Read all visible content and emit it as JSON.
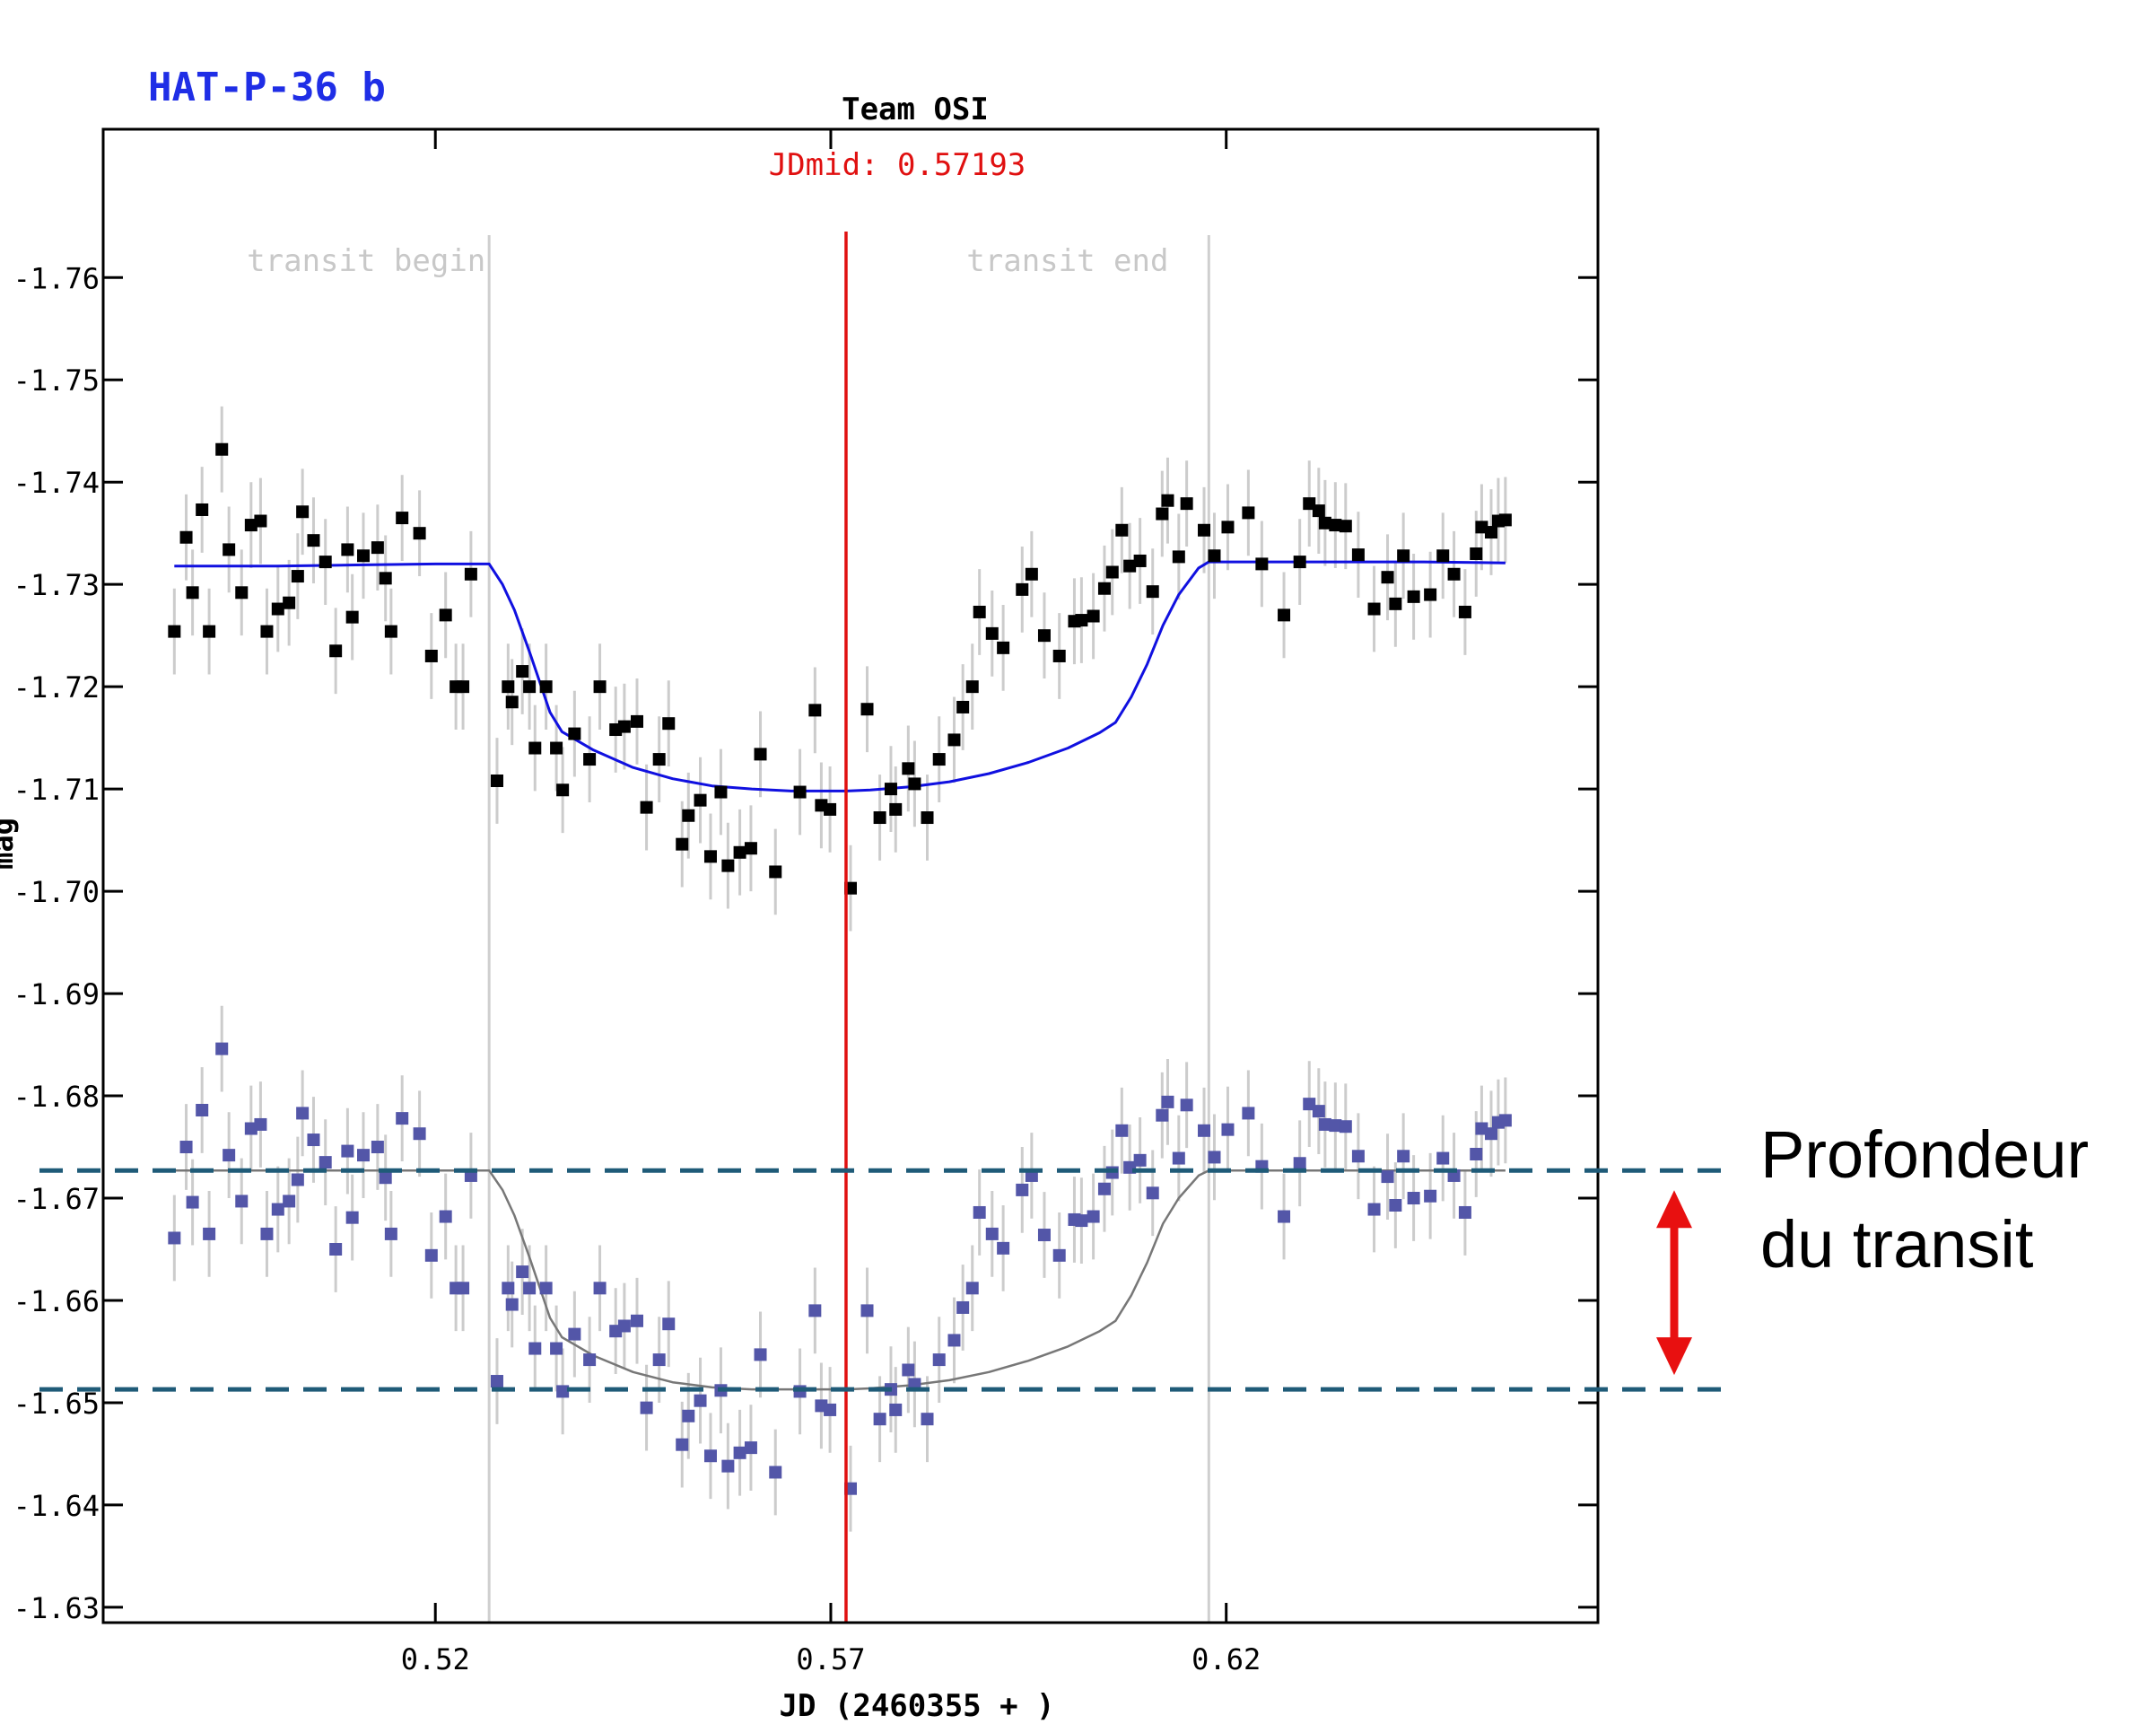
{
  "planet_name": "HAT-P-36 b",
  "annotation": {
    "line1": "Profondeur",
    "line2": "du transit"
  },
  "colors": {
    "planet_title": "#1f2ee6",
    "primary_points": "#000000",
    "primary_fit": "#1010e0",
    "secondary_points": "#5356a8",
    "secondary_fit": "#777777",
    "midline": "#e01010",
    "transit_bounds": "#cfcfcf",
    "error_bars": "#cccccc",
    "dashed_lines": "#1f5b78",
    "arrow": "#e81010"
  },
  "chart_data": {
    "type": "scatter",
    "title": "Team OSI",
    "subtitle": "JDmid: 0.57193",
    "xlabel": "JD (2460355 + )",
    "ylabel": "mag",
    "xlim": [
      0.478,
      0.667
    ],
    "ylim": [
      -1.7745,
      -1.6285
    ],
    "x_ticks": [
      0.52,
      0.57,
      0.62
    ],
    "x_tick_labels": [
      "0.52",
      "0.57",
      "0.62"
    ],
    "y_ticks": [
      -1.76,
      -1.75,
      -1.74,
      -1.73,
      -1.72,
      -1.71,
      -1.7,
      -1.69,
      -1.68,
      -1.67,
      -1.66,
      -1.65,
      -1.64,
      -1.63
    ],
    "y_tick_labels": [
      "-1.76",
      "-1.75",
      "-1.74",
      "-1.73",
      "-1.72",
      "-1.71",
      "-1.70",
      "-1.69",
      "-1.68",
      "-1.67",
      "-1.66",
      "-1.65",
      "-1.64",
      "-1.63"
    ],
    "y_inverted": true,
    "jd_mid": 0.57193,
    "transit_begin": {
      "x": 0.5268,
      "label": "transit begin"
    },
    "transit_end": {
      "x": 0.6178,
      "label": "transit end"
    },
    "transit_depth_lines": [
      -1.6727,
      -1.6513
    ],
    "series": [
      {
        "name": "target",
        "x": [
          0.487,
          0.4885,
          0.4893,
          0.4905,
          0.4914,
          0.493,
          0.4939,
          0.4955,
          0.4967,
          0.4979,
          0.4987,
          0.5001,
          0.5015,
          0.5026,
          0.5032,
          0.5046,
          0.5061,
          0.5074,
          0.5089,
          0.5095,
          0.5109,
          0.5127,
          0.5137,
          0.5144,
          0.5158,
          0.518,
          0.5195,
          0.5213,
          0.5226,
          0.5235,
          0.5245,
          0.5278,
          0.5292,
          0.5297,
          0.531,
          0.5319,
          0.5326,
          0.534,
          0.5353,
          0.5361,
          0.5376,
          0.5395,
          0.5408,
          0.5428,
          0.5439,
          0.5455,
          0.5467,
          0.5483,
          0.5495,
          0.5512,
          0.552,
          0.5535,
          0.5548,
          0.5561,
          0.557,
          0.5585,
          0.5599,
          0.5611,
          0.563,
          0.5661,
          0.568,
          0.5688,
          0.5699,
          0.5725,
          0.5746,
          0.5762,
          0.5776,
          0.5782,
          0.5798,
          0.5806,
          0.5822,
          0.5837,
          0.5856,
          0.5867,
          0.5879,
          0.5888,
          0.5904,
          0.5918,
          0.5942,
          0.5954,
          0.597,
          0.5989,
          0.6008,
          0.6017,
          0.6032,
          0.6046,
          0.6056,
          0.6068,
          0.6078,
          0.6091,
          0.6107,
          0.6119,
          0.6126,
          0.614,
          0.615,
          0.6172,
          0.6185,
          0.6202,
          0.6228,
          0.6245,
          0.6273,
          0.6293,
          0.6305,
          0.6317,
          0.6325,
          0.6338,
          0.6351,
          0.6367,
          0.6387,
          0.6404,
          0.6414,
          0.6424,
          0.6437,
          0.6458,
          0.6474,
          0.6488,
          0.6502,
          0.6516,
          0.6523,
          0.6535,
          0.6544,
          0.6553
        ],
        "y": [
          -1.7254,
          -1.7346,
          -1.7292,
          -1.7373,
          -1.7254,
          -1.7432,
          -1.7334,
          -1.7292,
          -1.7358,
          -1.7362,
          -1.7254,
          -1.7276,
          -1.7282,
          -1.7308,
          -1.7371,
          -1.7343,
          -1.7322,
          -1.7235,
          -1.7334,
          -1.7268,
          -1.7328,
          -1.7336,
          -1.7306,
          -1.7254,
          -1.7365,
          -1.735,
          -1.723,
          -1.727,
          -1.72,
          -1.72,
          -1.731,
          -1.7108,
          -1.72,
          -1.7185,
          -1.7215,
          -1.72,
          -1.714,
          -1.72,
          -1.714,
          -1.7099,
          -1.7154,
          -1.7129,
          -1.72,
          -1.7158,
          -1.7161,
          -1.7166,
          -1.7082,
          -1.7129,
          -1.7164,
          -1.7046,
          -1.7074,
          -1.7089,
          -1.7034,
          -1.7097,
          -1.7025,
          -1.7038,
          -1.7042,
          -1.7134,
          -1.7019,
          -1.7097,
          -1.7177,
          -1.7084,
          -1.708,
          -1.7003,
          -1.7178,
          -1.7072,
          -1.71,
          -1.708,
          -1.712,
          -1.7105,
          -1.7072,
          -1.7129,
          -1.7148,
          -1.718,
          -1.72,
          -1.7273,
          -1.7252,
          -1.7238,
          -1.7295,
          -1.731,
          -1.725,
          -1.723,
          -1.7264,
          -1.7265,
          -1.7269,
          -1.7296,
          -1.7312,
          -1.7353,
          -1.7318,
          -1.7323,
          -1.7293,
          -1.7369,
          -1.7382,
          -1.7327,
          -1.7379,
          -1.7353,
          -1.7328,
          -1.7356,
          -1.737,
          -1.732,
          -1.727,
          -1.7322,
          -1.7379,
          -1.7372,
          -1.736,
          -1.7358,
          -1.7357,
          -1.7329,
          -1.7276,
          -1.7307,
          -1.7281,
          -1.7328,
          -1.7288,
          -1.729,
          -1.7328,
          -1.731,
          -1.7273,
          -1.733,
          -1.7356,
          -1.7351,
          -1.7362,
          -1.7363
        ]
      },
      {
        "name": "comparison",
        "x": [
          0.487,
          0.4885,
          0.4893,
          0.4905,
          0.4914,
          0.493,
          0.4939,
          0.4955,
          0.4967,
          0.4979,
          0.4987,
          0.5001,
          0.5015,
          0.5026,
          0.5032,
          0.5046,
          0.5061,
          0.5074,
          0.5089,
          0.5095,
          0.5109,
          0.5127,
          0.5137,
          0.5144,
          0.5158,
          0.518,
          0.5195,
          0.5213,
          0.5226,
          0.5235,
          0.5245,
          0.5278,
          0.5292,
          0.5297,
          0.531,
          0.5319,
          0.5326,
          0.534,
          0.5353,
          0.5361,
          0.5376,
          0.5395,
          0.5408,
          0.5428,
          0.5439,
          0.5455,
          0.5467,
          0.5483,
          0.5495,
          0.5512,
          0.552,
          0.5535,
          0.5548,
          0.5561,
          0.557,
          0.5585,
          0.5599,
          0.5611,
          0.563,
          0.5661,
          0.568,
          0.5688,
          0.5699,
          0.5725,
          0.5746,
          0.5762,
          0.5776,
          0.5782,
          0.5798,
          0.5806,
          0.5822,
          0.5837,
          0.5856,
          0.5867,
          0.5879,
          0.5888,
          0.5904,
          0.5918,
          0.5942,
          0.5954,
          0.597,
          0.5989,
          0.6008,
          0.6017,
          0.6032,
          0.6046,
          0.6056,
          0.6068,
          0.6078,
          0.6091,
          0.6107,
          0.6119,
          0.6126,
          0.614,
          0.615,
          0.6172,
          0.6185,
          0.6202,
          0.6228,
          0.6245,
          0.6273,
          0.6293,
          0.6305,
          0.6317,
          0.6325,
          0.6338,
          0.6351,
          0.6367,
          0.6387,
          0.6404,
          0.6414,
          0.6424,
          0.6437,
          0.6458,
          0.6474,
          0.6488,
          0.6502,
          0.6516,
          0.6523,
          0.6535,
          0.6544,
          0.6553
        ],
        "y": [
          -1.6661,
          -1.675,
          -1.6696,
          -1.6786,
          -1.6665,
          -1.6846,
          -1.6742,
          -1.6697,
          -1.6768,
          -1.6772,
          -1.6665,
          -1.6689,
          -1.6697,
          -1.6718,
          -1.6783,
          -1.6757,
          -1.6735,
          -1.665,
          -1.6746,
          -1.6681,
          -1.6742,
          -1.675,
          -1.672,
          -1.6665,
          -1.6778,
          -1.6763,
          -1.6644,
          -1.6682,
          -1.6612,
          -1.6612,
          -1.6722,
          -1.6521,
          -1.6612,
          -1.6596,
          -1.6628,
          -1.6612,
          -1.6553,
          -1.6612,
          -1.6553,
          -1.6511,
          -1.6567,
          -1.6542,
          -1.6612,
          -1.657,
          -1.6575,
          -1.658,
          -1.6495,
          -1.6542,
          -1.6577,
          -1.6459,
          -1.6487,
          -1.6502,
          -1.6448,
          -1.6512,
          -1.6438,
          -1.6451,
          -1.6456,
          -1.6547,
          -1.6432,
          -1.6511,
          -1.659,
          -1.6497,
          -1.6493,
          -1.6416,
          -1.659,
          -1.6484,
          -1.6513,
          -1.6493,
          -1.6532,
          -1.6518,
          -1.6484,
          -1.6542,
          -1.6561,
          -1.6593,
          -1.6612,
          -1.6686,
          -1.6665,
          -1.6651,
          -1.6708,
          -1.6722,
          -1.6664,
          -1.6644,
          -1.6679,
          -1.6678,
          -1.6682,
          -1.6709,
          -1.6725,
          -1.6766,
          -1.673,
          -1.6737,
          -1.6705,
          -1.6781,
          -1.6794,
          -1.6739,
          -1.6791,
          -1.6766,
          -1.674,
          -1.6767,
          -1.6783,
          -1.6731,
          -1.6682,
          -1.6734,
          -1.6792,
          -1.6785,
          -1.6772,
          -1.6771,
          -1.677,
          -1.6741,
          -1.6689,
          -1.6721,
          -1.6693,
          -1.6741,
          -1.67,
          -1.6702,
          -1.6739,
          -1.6722,
          -1.6686,
          -1.6743,
          -1.6768,
          -1.6763,
          -1.6774,
          -1.6776
        ]
      }
    ],
    "error_bar_halfwidth": 0.0042,
    "fits": [
      {
        "name": "target model",
        "x": [
          0.487,
          0.5,
          0.51,
          0.52,
          0.526,
          0.5268,
          0.5285,
          0.53,
          0.532,
          0.5345,
          0.536,
          0.54,
          0.545,
          0.55,
          0.555,
          0.56,
          0.565,
          0.57,
          0.572,
          0.575,
          0.58,
          0.585,
          0.59,
          0.595,
          0.6,
          0.604,
          0.606,
          0.608,
          0.61,
          0.612,
          0.614,
          0.6165,
          0.6178,
          0.625,
          0.635,
          0.645,
          0.6553
        ],
        "y": [
          -1.7318,
          -1.7318,
          -1.7319,
          -1.732,
          -1.732,
          -1.732,
          -1.73,
          -1.7275,
          -1.7232,
          -1.7175,
          -1.7156,
          -1.7138,
          -1.7121,
          -1.711,
          -1.7103,
          -1.71,
          -1.7098,
          -1.7098,
          -1.7098,
          -1.7099,
          -1.7102,
          -1.7107,
          -1.7115,
          -1.7126,
          -1.714,
          -1.7155,
          -1.7165,
          -1.719,
          -1.7222,
          -1.726,
          -1.729,
          -1.7316,
          -1.7322,
          -1.7322,
          -1.7322,
          -1.7322,
          -1.7321
        ]
      },
      {
        "name": "comparison model",
        "x": [
          0.487,
          0.5,
          0.51,
          0.52,
          0.526,
          0.5268,
          0.5285,
          0.53,
          0.532,
          0.5345,
          0.536,
          0.54,
          0.545,
          0.55,
          0.555,
          0.56,
          0.565,
          0.57,
          0.572,
          0.575,
          0.58,
          0.585,
          0.59,
          0.595,
          0.6,
          0.604,
          0.606,
          0.608,
          0.61,
          0.612,
          0.614,
          0.6165,
          0.6178,
          0.625,
          0.635,
          0.645,
          0.6553
        ],
        "y": [
          -1.6727,
          -1.6727,
          -1.6727,
          -1.6727,
          -1.6727,
          -1.6727,
          -1.6708,
          -1.6683,
          -1.664,
          -1.6583,
          -1.6564,
          -1.6546,
          -1.653,
          -1.652,
          -1.6515,
          -1.6513,
          -1.6513,
          -1.6513,
          -1.6513,
          -1.6514,
          -1.6517,
          -1.6522,
          -1.653,
          -1.6541,
          -1.6555,
          -1.657,
          -1.658,
          -1.6605,
          -1.6637,
          -1.6675,
          -1.67,
          -1.6722,
          -1.6727,
          -1.6727,
          -1.6727,
          -1.6727,
          -1.6727
        ]
      }
    ]
  }
}
